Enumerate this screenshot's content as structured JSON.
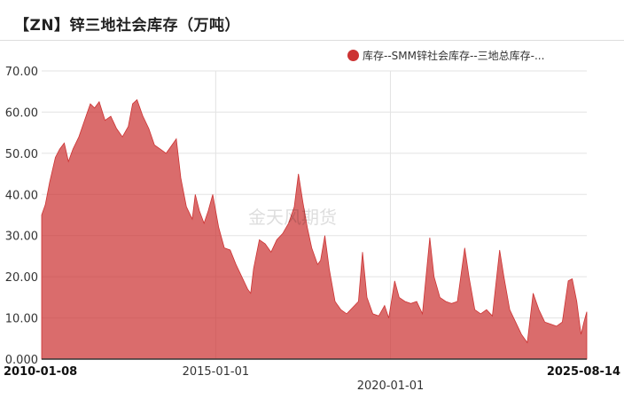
{
  "title": "【ZN】锌三地社会库存（万吨）",
  "watermark": "金天风期货",
  "chart_data": {
    "type": "area",
    "legend": [
      "库存--SMM锌社会库存--三地总库存-..."
    ],
    "legend_position": "top-right",
    "series": [
      {
        "name": "库存--SMM锌社会库存--三地总库存-...",
        "color": "#cc3333"
      }
    ],
    "ylim": [
      0,
      70
    ],
    "y_ticks": [
      "0.000",
      "10.00",
      "20.00",
      "30.00",
      "40.00",
      "50.00",
      "60.00",
      "70.00"
    ],
    "x_range": [
      "2010-01-08",
      "2025-08-14"
    ],
    "x_ticks": [
      {
        "label": "2010-01-08",
        "date": "2010-01-08",
        "bold": true
      },
      {
        "label": "2015-01-01",
        "date": "2015-01-01",
        "bold": false
      },
      {
        "label": "2020-01-01",
        "date": "2020-01-01",
        "bold": false
      },
      {
        "label": "2025-08-14",
        "date": "2025-08-14",
        "bold": true
      }
    ],
    "grid": true,
    "points": [
      [
        "2010-01-08",
        35.0
      ],
      [
        "2010-02-15",
        37.5
      ],
      [
        "2010-04-01",
        43.0
      ],
      [
        "2010-06-01",
        49.0
      ],
      [
        "2010-07-15",
        51.0
      ],
      [
        "2010-09-01",
        52.5
      ],
      [
        "2010-10-15",
        48.0
      ],
      [
        "2010-12-01",
        51.0
      ],
      [
        "2011-02-01",
        54.0
      ],
      [
        "2011-04-01",
        58.0
      ],
      [
        "2011-06-01",
        62.0
      ],
      [
        "2011-07-15",
        61.0
      ],
      [
        "2011-09-01",
        62.5
      ],
      [
        "2011-11-01",
        58.0
      ],
      [
        "2012-01-01",
        59.0
      ],
      [
        "2012-03-01",
        56.0
      ],
      [
        "2012-05-01",
        54.0
      ],
      [
        "2012-07-01",
        56.5
      ],
      [
        "2012-08-15",
        62.0
      ],
      [
        "2012-10-01",
        63.0
      ],
      [
        "2012-12-01",
        59.0
      ],
      [
        "2013-02-01",
        56.0
      ],
      [
        "2013-04-01",
        52.0
      ],
      [
        "2013-06-01",
        51.0
      ],
      [
        "2013-08-01",
        50.0
      ],
      [
        "2013-10-01",
        52.0
      ],
      [
        "2013-11-15",
        53.5
      ],
      [
        "2014-01-01",
        44.0
      ],
      [
        "2014-03-01",
        37.0
      ],
      [
        "2014-05-01",
        34.0
      ],
      [
        "2014-06-01",
        40.0
      ],
      [
        "2014-07-15",
        36.0
      ],
      [
        "2014-09-01",
        33.0
      ],
      [
        "2014-10-15",
        36.0
      ],
      [
        "2014-12-01",
        40.0
      ],
      [
        "2015-02-01",
        32.0
      ],
      [
        "2015-04-01",
        27.0
      ],
      [
        "2015-06-01",
        26.5
      ],
      [
        "2015-08-01",
        23.0
      ],
      [
        "2015-10-01",
        20.0
      ],
      [
        "2015-12-01",
        17.0
      ],
      [
        "2016-01-01",
        16.0
      ],
      [
        "2016-02-01",
        22.0
      ],
      [
        "2016-04-01",
        29.0
      ],
      [
        "2016-06-01",
        28.0
      ],
      [
        "2016-08-01",
        26.0
      ],
      [
        "2016-10-01",
        29.0
      ],
      [
        "2016-12-01",
        30.5
      ],
      [
        "2017-02-01",
        33.0
      ],
      [
        "2017-04-01",
        37.0
      ],
      [
        "2017-05-15",
        45.0
      ],
      [
        "2017-07-01",
        38.0
      ],
      [
        "2017-08-15",
        32.0
      ],
      [
        "2017-10-01",
        27.0
      ],
      [
        "2017-12-01",
        23.0
      ],
      [
        "2018-01-01",
        24.0
      ],
      [
        "2018-02-15",
        30.0
      ],
      [
        "2018-04-01",
        22.0
      ],
      [
        "2018-06-01",
        14.0
      ],
      [
        "2018-08-01",
        12.0
      ],
      [
        "2018-10-01",
        11.0
      ],
      [
        "2018-12-01",
        12.5
      ],
      [
        "2019-02-01",
        14.0
      ],
      [
        "2019-03-15",
        26.0
      ],
      [
        "2019-05-01",
        15.0
      ],
      [
        "2019-07-01",
        11.0
      ],
      [
        "2019-09-01",
        10.5
      ],
      [
        "2019-11-01",
        13.0
      ],
      [
        "2019-12-15",
        10.0
      ],
      [
        "2020-02-15",
        19.0
      ],
      [
        "2020-04-01",
        15.0
      ],
      [
        "2020-06-01",
        14.0
      ],
      [
        "2020-08-01",
        13.5
      ],
      [
        "2020-10-01",
        14.0
      ],
      [
        "2020-12-01",
        11.0
      ],
      [
        "2021-02-15",
        29.5
      ],
      [
        "2021-04-01",
        20.0
      ],
      [
        "2021-06-01",
        15.0
      ],
      [
        "2021-08-01",
        14.0
      ],
      [
        "2021-10-01",
        13.5
      ],
      [
        "2021-12-01",
        14.0
      ],
      [
        "2022-02-15",
        27.0
      ],
      [
        "2022-04-01",
        20.0
      ],
      [
        "2022-06-01",
        12.0
      ],
      [
        "2022-08-01",
        11.0
      ],
      [
        "2022-10-01",
        12.0
      ],
      [
        "2022-12-01",
        10.5
      ],
      [
        "2023-02-15",
        26.5
      ],
      [
        "2023-04-01",
        20.0
      ],
      [
        "2023-06-01",
        12.0
      ],
      [
        "2023-08-01",
        9.0
      ],
      [
        "2023-10-01",
        6.0
      ],
      [
        "2023-12-01",
        4.0
      ],
      [
        "2024-02-01",
        16.0
      ],
      [
        "2024-04-01",
        12.0
      ],
      [
        "2024-06-01",
        9.0
      ],
      [
        "2024-08-01",
        8.5
      ],
      [
        "2024-10-01",
        8.0
      ],
      [
        "2024-12-01",
        9.0
      ],
      [
        "2025-02-01",
        19.0
      ],
      [
        "2025-03-15",
        19.5
      ],
      [
        "2025-05-01",
        14.0
      ],
      [
        "2025-06-15",
        6.0
      ],
      [
        "2025-07-15",
        9.0
      ],
      [
        "2025-08-14",
        11.5
      ]
    ]
  }
}
